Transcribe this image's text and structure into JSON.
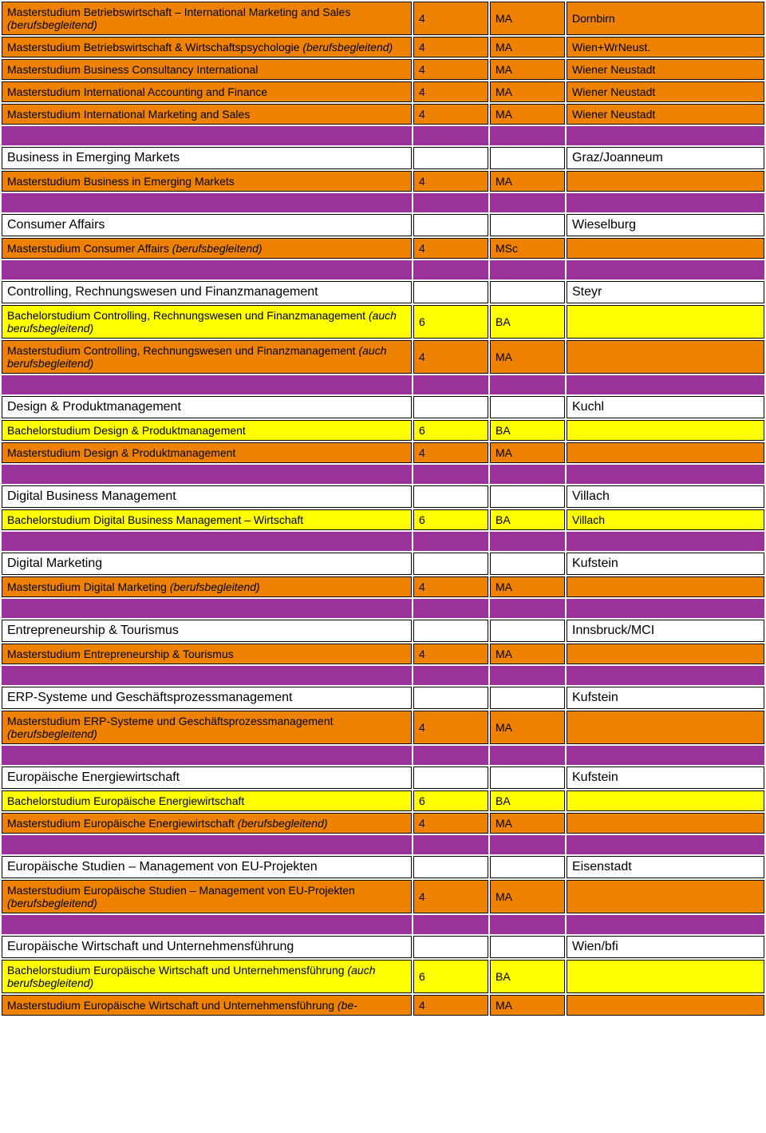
{
  "rows": [
    {
      "type": "orange",
      "c1": "Masterstudium Betriebswirtschaft – International Marketing and Sales",
      "c1_suffix": "(berufsbegleitend)",
      "suffix_italic": true,
      "c2": "4",
      "c3": "MA",
      "c4": "Dornbirn"
    },
    {
      "type": "orange",
      "c1": "Masterstudium Betriebswirtschaft & Wirtschaftspsychologie",
      "c1_suffix": "(berufsbegleitend)",
      "suffix_italic": true,
      "c2": "4",
      "c3": "MA",
      "c4": "Wien+WrNeust."
    },
    {
      "type": "orange",
      "c1": "Masterstudium Business Consultancy International",
      "c2": "4",
      "c3": "MA",
      "c4": "Wiener Neustadt"
    },
    {
      "type": "orange",
      "c1": "Masterstudium International Accounting and Finance",
      "c2": "4",
      "c3": "MA",
      "c4": "Wiener Neustadt"
    },
    {
      "type": "orange",
      "c1": "Masterstudium International Marketing and Sales",
      "c2": "4",
      "c3": "MA",
      "c4": "Wiener Neustadt"
    },
    {
      "type": "purple"
    },
    {
      "type": "white",
      "c1": "Business in Emerging Markets",
      "c2": "",
      "c3": "",
      "c4": "Graz/Joanneum"
    },
    {
      "type": "orange",
      "c1": "Masterstudium Business in Emerging Markets",
      "c2": "4",
      "c3": "MA",
      "c4": ""
    },
    {
      "type": "purple"
    },
    {
      "type": "white",
      "c1": "Consumer Affairs",
      "c2": "",
      "c3": "",
      "c4": "Wieselburg"
    },
    {
      "type": "orange",
      "c1": "Masterstudium Consumer Affairs",
      "c1_suffix": "(berufsbegleitend)",
      "suffix_italic": true,
      "c2": "4",
      "c3": "MSc",
      "c4": ""
    },
    {
      "type": "purple"
    },
    {
      "type": "white",
      "c1": "Controlling, Rechnungswesen und Finanzmanagement",
      "c2": "",
      "c3": "",
      "c4": "Steyr"
    },
    {
      "type": "yellow",
      "c1": "Bachelorstudium Controlling, Rechnungswesen und Finanzmanagement",
      "c1_suffix": "(auch berufsbegleitend)",
      "suffix_italic": true,
      "c2": "6",
      "c3": "BA",
      "c4": ""
    },
    {
      "type": "orange",
      "c1": "Masterstudium Controlling, Rechnungswesen und Finanzmanagement",
      "c1_suffix": "(auch berufsbegleitend)",
      "suffix_italic": true,
      "c2": "4",
      "c3": "MA",
      "c4": ""
    },
    {
      "type": "purple"
    },
    {
      "type": "white",
      "c1": "Design & Produktmanagement",
      "c2": "",
      "c3": "",
      "c4": "Kuchl"
    },
    {
      "type": "yellow",
      "c1": "Bachelorstudium Design & Produktmanagement",
      "c2": "6",
      "c3": "BA",
      "c4": ""
    },
    {
      "type": "orange",
      "c1": "Masterstudium Design & Produktmanagement",
      "c2": "4",
      "c3": "MA",
      "c4": ""
    },
    {
      "type": "purple"
    },
    {
      "type": "white",
      "c1": "Digital Business Management",
      "c2": "",
      "c3": "",
      "c4": "Villach"
    },
    {
      "type": "yellow",
      "c1": "Bachelorstudium Digital Business Management – Wirtschaft",
      "c2": "6",
      "c3": "BA",
      "c4": "Villach"
    },
    {
      "type": "purple"
    },
    {
      "type": "white",
      "c1": "Digital Marketing",
      "c2": "",
      "c3": "",
      "c4": "Kufstein"
    },
    {
      "type": "orange",
      "c1": "Masterstudium Digital Marketing",
      "c1_suffix": "(berufsbegleitend)",
      "suffix_italic": true,
      "c2": "4",
      "c3": "MA",
      "c4": ""
    },
    {
      "type": "purple"
    },
    {
      "type": "white",
      "c1": "Entrepreneurship & Tourismus",
      "c2": "",
      "c3": "",
      "c4": "Innsbruck/MCI"
    },
    {
      "type": "orange",
      "c1": "Masterstudium Entrepreneurship & Tourismus",
      "c2": "4",
      "c3": "MA",
      "c4": ""
    },
    {
      "type": "purple"
    },
    {
      "type": "white",
      "c1": "ERP-Systeme und Geschäftsprozessmanagement",
      "c2": "",
      "c3": "",
      "c4": "Kufstein"
    },
    {
      "type": "orange",
      "c1": "Masterstudium ERP-Systeme und Geschäftsprozessmanagement",
      "c1_suffix": "(berufsbegleitend)",
      "suffix_italic": true,
      "c2": "4",
      "c3": "MA",
      "c4": ""
    },
    {
      "type": "purple"
    },
    {
      "type": "white",
      "c1": "Europäische Energiewirtschaft",
      "c2": "",
      "c3": "",
      "c4": "Kufstein"
    },
    {
      "type": "yellow",
      "c1": "Bachelorstudium Europäische Energiewirtschaft",
      "c2": "6",
      "c3": "BA",
      "c4": ""
    },
    {
      "type": "orange",
      "c1": "Masterstudium Europäische Energiewirtschaft",
      "c1_suffix": "(berufsbegleitend)",
      "suffix_italic": true,
      "c2": "4",
      "c3": "MA",
      "c4": ""
    },
    {
      "type": "purple"
    },
    {
      "type": "white",
      "c1": "Europäische Studien – Management von EU-Projekten",
      "c2": "",
      "c3": "",
      "c4": "Eisenstadt"
    },
    {
      "type": "orange",
      "c1": "Masterstudium Europäische Studien – Management von EU-Projekten",
      "c1_suffix": "(berufsbegleitend)",
      "suffix_italic": true,
      "c2": "4",
      "c3": "MA",
      "c4": ""
    },
    {
      "type": "purple"
    },
    {
      "type": "white",
      "c1": "Europäische Wirtschaft und Unternehmensführung",
      "c2": "",
      "c3": "",
      "c4": "Wien/bfi"
    },
    {
      "type": "yellow",
      "c1": "Bachelorstudium Europäische Wirtschaft und Unternehmensführung",
      "c1_suffix": "(auch berufsbegleitend)",
      "suffix_italic": true,
      "c2": "6",
      "c3": "BA",
      "c4": ""
    },
    {
      "type": "orange",
      "c1": "Masterstudium Europäische Wirtschaft und Unternehmensführung",
      "c1_suffix": "(be-",
      "suffix_italic": true,
      "c2": "4",
      "c3": "MA",
      "c4": ""
    }
  ],
  "colors": {
    "purple": "#993399",
    "orange": "#ee8200",
    "yellow": "#ffff00",
    "white": "#ffffff",
    "border": "#000000"
  }
}
